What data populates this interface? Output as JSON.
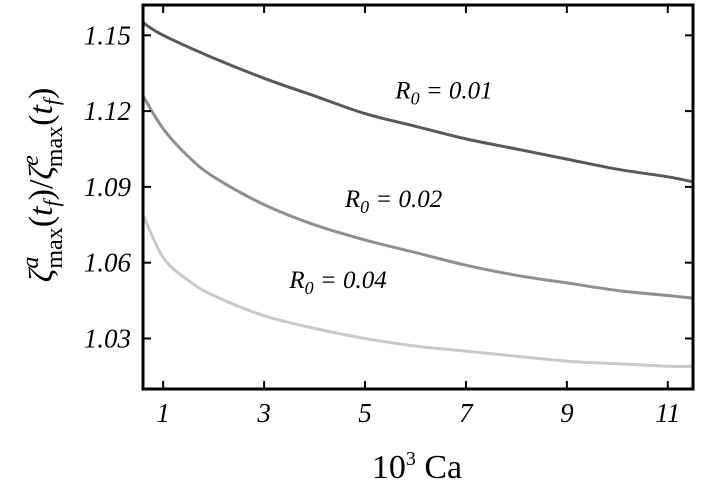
{
  "chart_data": {
    "type": "line",
    "title": "",
    "xlabel": "10³ Ca",
    "ylabel": "ζ^a_max(t_f)/ζ^e_max(t_f)",
    "xlim": [
      0.6,
      11.5
    ],
    "ylim": [
      1.01,
      1.162
    ],
    "x_ticks": [
      1,
      3,
      5,
      7,
      9,
      11
    ],
    "x_tick_labels": [
      "1",
      "3",
      "5",
      "7",
      "9",
      "11"
    ],
    "y_ticks": [
      1.03,
      1.06,
      1.09,
      1.12,
      1.15
    ],
    "y_tick_labels": [
      "1.03",
      "1.06",
      "1.09",
      "1.12",
      "1.15"
    ],
    "grid": false,
    "legend": "inline-labels",
    "series": [
      {
        "name": "R₀ = 0.01",
        "color": "#595959",
        "x": [
          0.6,
          1,
          2,
          3,
          4,
          5,
          6,
          7,
          8,
          9,
          10,
          11,
          11.5
        ],
        "y": [
          1.155,
          1.15,
          1.141,
          1.133,
          1.126,
          1.119,
          1.114,
          1.109,
          1.105,
          1.101,
          1.097,
          1.094,
          1.092
        ]
      },
      {
        "name": "R₀ = 0.02",
        "color": "#8f8f8f",
        "x": [
          0.6,
          1,
          1.5,
          2,
          3,
          4,
          5,
          6,
          7,
          8,
          9,
          10,
          11,
          11.5
        ],
        "y": [
          1.126,
          1.113,
          1.102,
          1.094,
          1.083,
          1.075,
          1.069,
          1.064,
          1.059,
          1.055,
          1.052,
          1.049,
          1.047,
          1.046
        ]
      },
      {
        "name": "R₀ = 0.04",
        "color": "#c8c8c8",
        "x": [
          0.6,
          1,
          1.5,
          2,
          3,
          4,
          5,
          6,
          7,
          8,
          9,
          10,
          11,
          11.5
        ],
        "y": [
          1.079,
          1.062,
          1.053,
          1.047,
          1.039,
          1.034,
          1.03,
          1.027,
          1.025,
          1.023,
          1.021,
          1.02,
          1.019,
          1.019
        ]
      }
    ],
    "annotations": [
      {
        "series": 0,
        "sub": "0",
        "value": "= 0.01"
      },
      {
        "series": 1,
        "sub": "0",
        "value": "= 0.02"
      },
      {
        "series": 2,
        "sub": "0",
        "value": "= 0.04"
      }
    ]
  }
}
